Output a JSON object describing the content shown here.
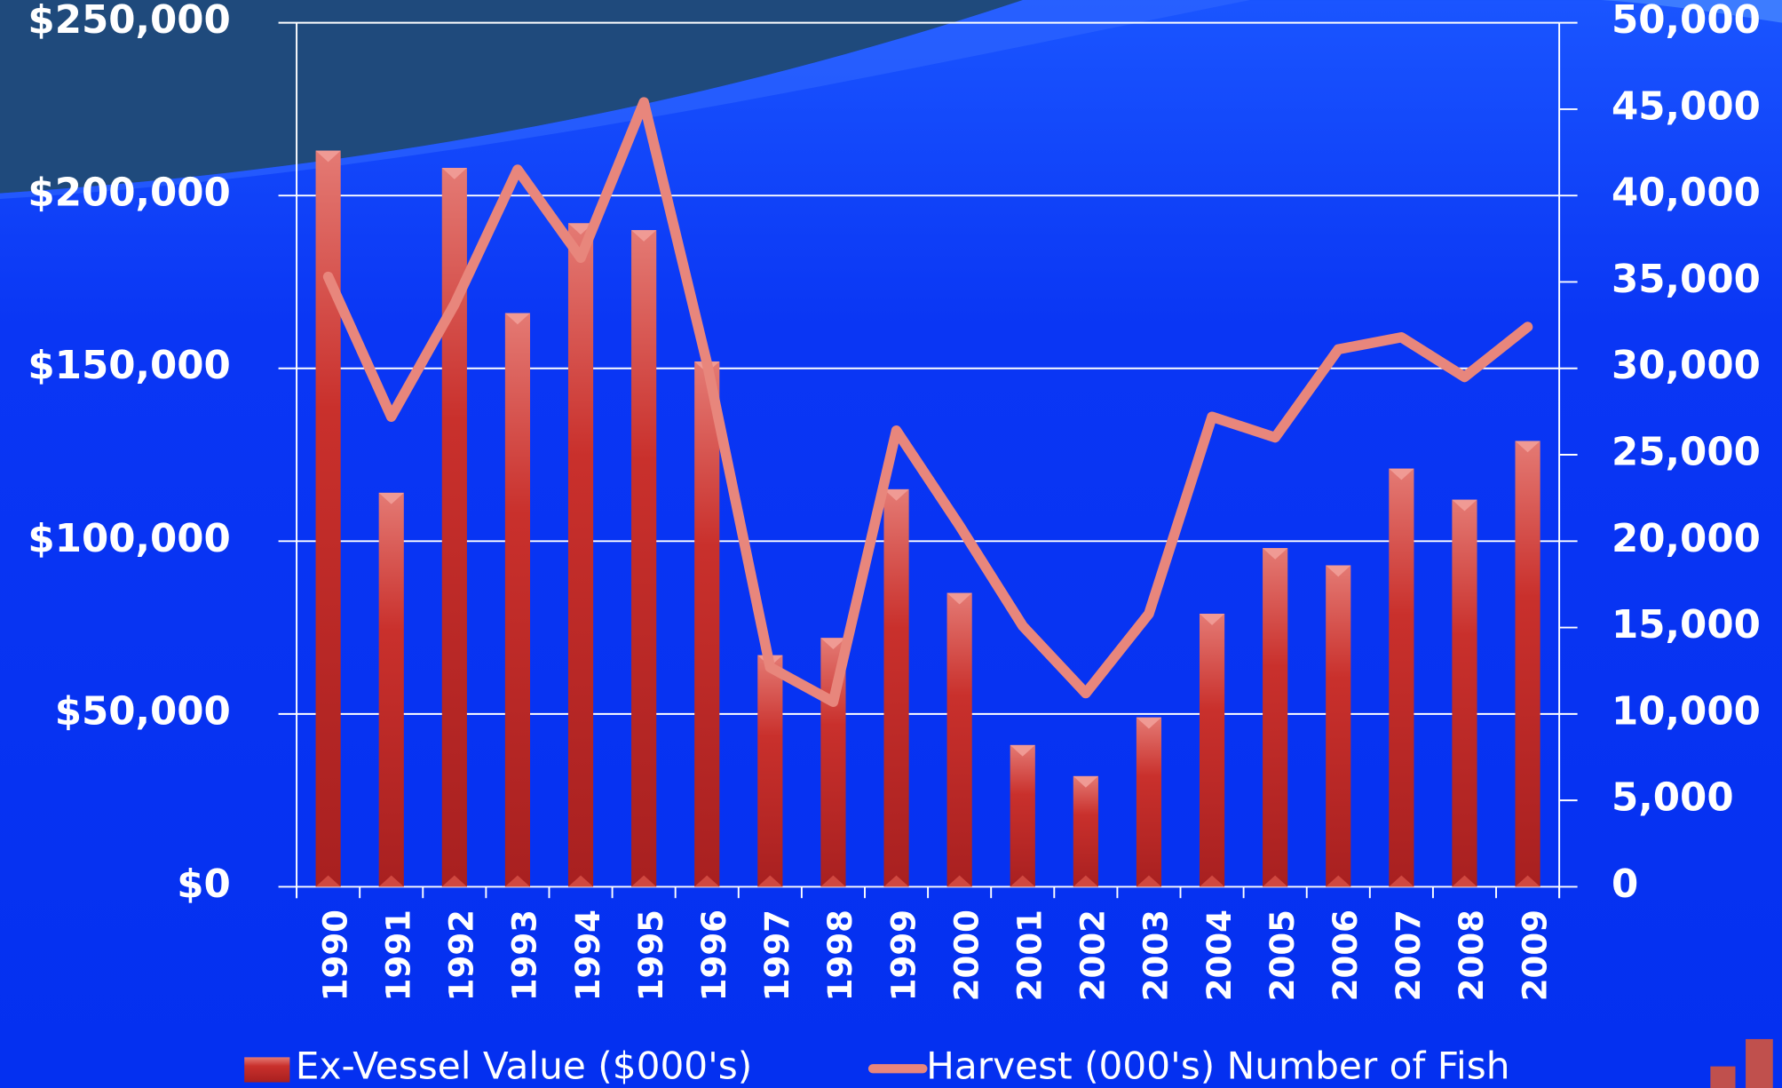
{
  "chart_data": {
    "type": "bar",
    "categories": [
      "1990",
      "1991",
      "1992",
      "1993",
      "1994",
      "1995",
      "1996",
      "1997",
      "1998",
      "1999",
      "2000",
      "2001",
      "2002",
      "2003",
      "2004",
      "2005",
      "2006",
      "2007",
      "2008",
      "2009"
    ],
    "series": [
      {
        "name": "Ex-Vessel Value ($000's)",
        "type": "bar",
        "axis": "y",
        "color": "#c4282a",
        "values": [
          213000,
          114000,
          208000,
          166000,
          192000,
          190000,
          152000,
          67000,
          72000,
          115000,
          85000,
          41000,
          32000,
          49000,
          79000,
          98000,
          93000,
          121000,
          112000,
          129000
        ]
      },
      {
        "name": "Harvest (000's) Number of Fish",
        "type": "line",
        "axis": "y2",
        "color": "#e8867c",
        "values": [
          35300,
          27200,
          33700,
          41500,
          36400,
          45400,
          30300,
          12700,
          10700,
          26400,
          20900,
          15100,
          11200,
          15800,
          27200,
          26000,
          31100,
          31800,
          29500,
          32400
        ]
      }
    ],
    "ylim": [
      0,
      250000
    ],
    "yticks": [
      {
        "value": 0,
        "label": "$0"
      },
      {
        "value": 50000,
        "label": "$50,000"
      },
      {
        "value": 100000,
        "label": "$100,000"
      },
      {
        "value": 150000,
        "label": "$150,000"
      },
      {
        "value": 200000,
        "label": "$200,000"
      },
      {
        "value": 250000,
        "label": "$250,000"
      }
    ],
    "y2lim": [
      0,
      50000
    ],
    "y2ticks": [
      0,
      {
        "value": 5000,
        "label": "5,000"
      },
      {
        "value": 10000,
        "label": "10,000"
      },
      {
        "value": 15000,
        "label": "15,000"
      },
      {
        "value": 20000,
        "label": "20,000"
      },
      {
        "value": 25000,
        "label": "25,000"
      },
      {
        "value": 30000,
        "label": "30,000"
      },
      {
        "value": 35000,
        "label": "35,000"
      },
      {
        "value": 40000,
        "label": "40,000"
      },
      {
        "value": 45000,
        "label": "45,000"
      },
      {
        "value": 50000,
        "label": "50,000"
      }
    ],
    "grid": true
  }
}
